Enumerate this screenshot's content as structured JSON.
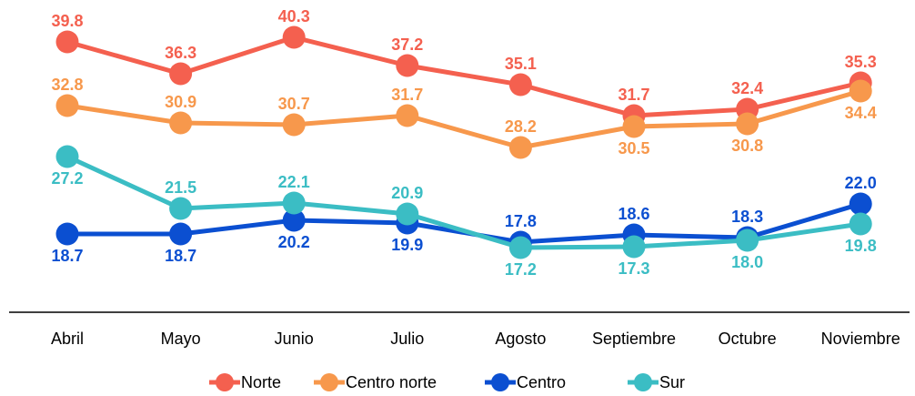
{
  "chart_data": {
    "type": "line",
    "categories": [
      "Abril",
      "Mayo",
      "Junio",
      "Julio",
      "Agosto",
      "Septiembre",
      "Octubre",
      "Noviembre"
    ],
    "ylim": [
      10,
      44
    ],
    "series": [
      {
        "name": "Norte",
        "color": "#f4604f",
        "values": [
          39.8,
          36.3,
          40.3,
          37.2,
          35.1,
          31.7,
          32.4,
          35.3
        ],
        "value_labels": [
          "39.8",
          "36.3",
          "40.3",
          "37.2",
          "35.1",
          "31.7",
          "32.4",
          "35.3"
        ]
      },
      {
        "name": "Centro norte",
        "color": "#f7984c",
        "values": [
          32.8,
          30.9,
          30.7,
          31.7,
          28.2,
          30.5,
          30.8,
          34.4
        ],
        "value_labels": [
          "32.8",
          "30.9",
          "30.7",
          "31.7",
          "28.2",
          "30.5",
          "30.8",
          "34.4"
        ]
      },
      {
        "name": "Centro",
        "color": "#0b4fd1",
        "values": [
          18.7,
          18.7,
          20.2,
          19.9,
          17.8,
          18.6,
          18.3,
          22.0
        ],
        "value_labels": [
          "18.7",
          "18.7",
          "20.2",
          "19.9",
          "17.8",
          "18.6",
          "18.3",
          "22.0"
        ]
      },
      {
        "name": "Sur",
        "color": "#3bbdc4",
        "values": [
          27.2,
          21.5,
          22.1,
          20.9,
          17.2,
          17.3,
          18.0,
          19.8
        ],
        "value_labels": [
          "27.2",
          "21.5",
          "22.1",
          "20.9",
          "17.2",
          "17.3",
          "18.0",
          "19.8"
        ]
      }
    ]
  }
}
